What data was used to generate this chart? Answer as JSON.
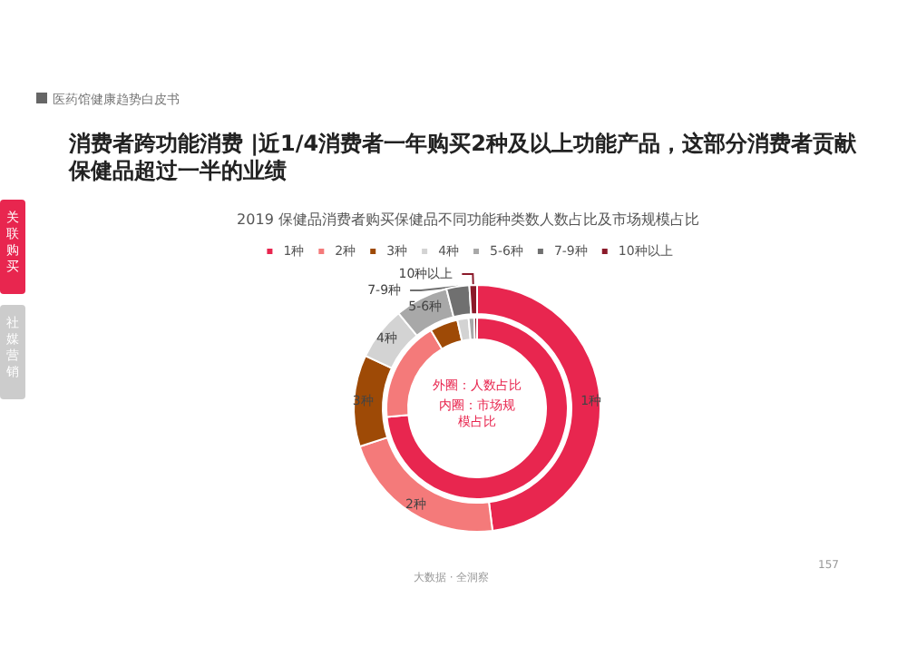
{
  "chart_data": {
    "type": "donut",
    "title": "消费者跨功能消费 |近1/4消费者一年购买2种及以上功能产品，这部分消费者贡献保健品超过一半的业绩",
    "subtitle": "2019 保健品消费者购买保健品不同功能种类数人数占比及市场规模占比",
    "categories": [
      "1种",
      "2种",
      "3种",
      "4种",
      "5-6种",
      "7-9种",
      "10种以上"
    ],
    "colors": [
      "#e8264f",
      "#f47a7a",
      "#9e4a06",
      "#d3d3d3",
      "#a8a8a8",
      "#707070",
      "#8b1a2a"
    ],
    "series": [
      {
        "values": [
          48,
          22,
          12,
          7,
          7,
          3,
          1
        ]
      },
      {
        "values": [
          73.5,
          18,
          5,
          2,
          1,
          null,
          0.5
        ]
      }
    ],
    "legend": "top",
    "annotations": [
      "医药馆健康趋势白皮书",
      "关联购买",
      "社媒营销",
      "外圈：人数占比",
      "大数据 · 全洞察",
      "157",
      "内圈：市场规模占比"
    ]
  }
}
